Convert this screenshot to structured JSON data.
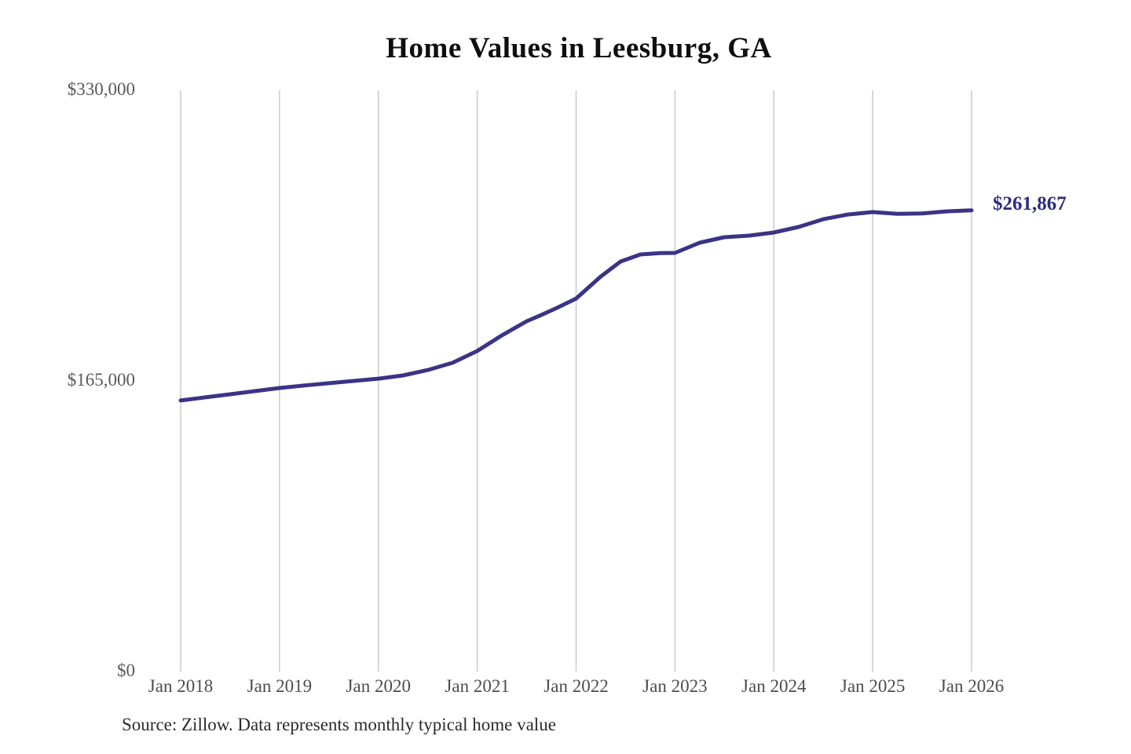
{
  "chart_data": {
    "type": "line",
    "title": "Home Values in Leesburg, GA",
    "source_note": "Source: Zillow. Data represents monthly typical home value",
    "xlabel": "",
    "ylabel": "",
    "x_range": [
      2018.0,
      2026.0
    ],
    "ylim": [
      0,
      330000
    ],
    "grid": "vertical-only",
    "legend": "none",
    "x_tick_labels": [
      "Jan 2018",
      "Jan 2019",
      "Jan 2020",
      "Jan 2021",
      "Jan 2022",
      "Jan 2023",
      "Jan 2024",
      "Jan 2025",
      "Jan 2026"
    ],
    "y_ticks": [
      {
        "value": 0,
        "label": "$0"
      },
      {
        "value": 165000,
        "label": "$165,000"
      },
      {
        "value": 330000,
        "label": "$330,000"
      }
    ],
    "end_label": "$261,867",
    "end_value": 261867,
    "colors": {
      "line": "#3a3486",
      "end_label": "#2d2c7f",
      "grid": "#cdcdcd",
      "title": "#0f0f0f",
      "axis_text": "#595959"
    },
    "series": [
      {
        "name": "Monthly typical home value",
        "points": [
          [
            2018.0,
            153900
          ],
          [
            2018.25,
            155700
          ],
          [
            2018.5,
            157400
          ],
          [
            2018.75,
            159200
          ],
          [
            2019.0,
            161000
          ],
          [
            2019.25,
            162400
          ],
          [
            2019.5,
            163700
          ],
          [
            2019.75,
            165000
          ],
          [
            2020.0,
            166300
          ],
          [
            2020.25,
            168100
          ],
          [
            2020.5,
            171200
          ],
          [
            2020.75,
            175300
          ],
          [
            2021.0,
            182000
          ],
          [
            2021.25,
            190900
          ],
          [
            2021.5,
            198900
          ],
          [
            2021.65,
            202500
          ],
          [
            2021.8,
            206300
          ],
          [
            2022.0,
            211800
          ],
          [
            2022.25,
            224300
          ],
          [
            2022.45,
            232800
          ],
          [
            2022.65,
            236800
          ],
          [
            2022.85,
            237600
          ],
          [
            2023.0,
            237700
          ],
          [
            2023.25,
            243500
          ],
          [
            2023.5,
            246600
          ],
          [
            2023.75,
            247500
          ],
          [
            2024.0,
            249300
          ],
          [
            2024.25,
            252400
          ],
          [
            2024.5,
            256800
          ],
          [
            2024.75,
            259500
          ],
          [
            2025.0,
            260900
          ],
          [
            2025.25,
            259900
          ],
          [
            2025.5,
            260100
          ],
          [
            2025.75,
            261300
          ],
          [
            2026.0,
            261867
          ]
        ]
      }
    ]
  }
}
